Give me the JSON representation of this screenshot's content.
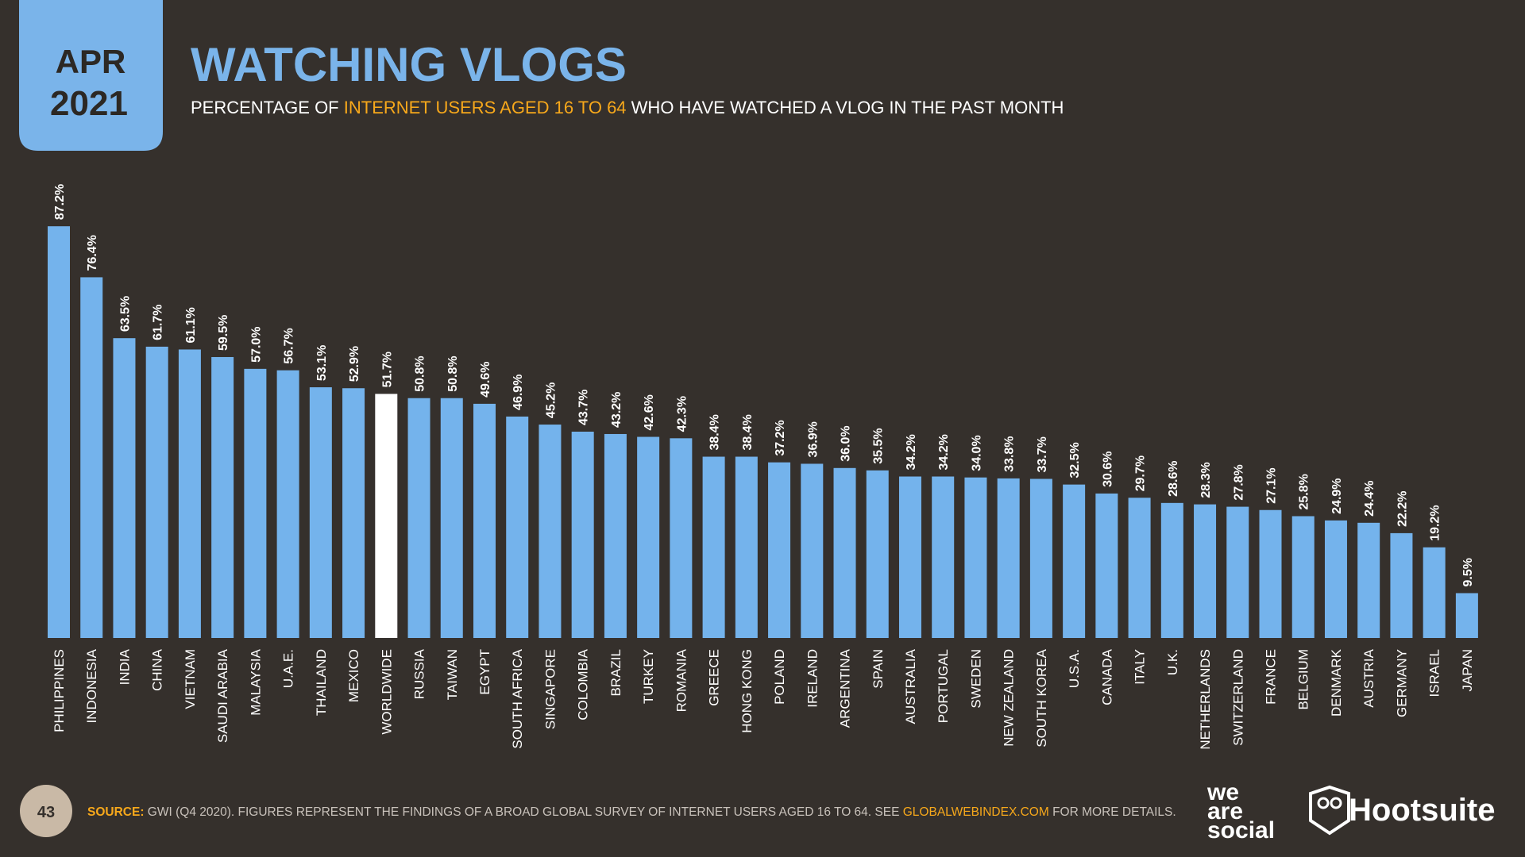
{
  "badge": {
    "month": "APR",
    "year": "2021"
  },
  "chart_data": {
    "type": "bar",
    "title": "WATCHING VLOGS",
    "subtitle": [
      "PERCENTAGE OF",
      "INTERNET USERS AGED 16 TO 64",
      "WHO HAVE WATCHED A VLOG IN THE PAST MONTH"
    ],
    "categories": [
      "PHILIPPINES",
      "INDONESIA",
      "INDIA",
      "CHINA",
      "VIETNAM",
      "SAUDI ARABIA",
      "MALAYSIA",
      "U.A.E.",
      "THAILAND",
      "MEXICO",
      "WORLDWIDE",
      "RUSSIA",
      "TAIWAN",
      "EGYPT",
      "SOUTH AFRICA",
      "SINGAPORE",
      "COLOMBIA",
      "BRAZIL",
      "TURKEY",
      "ROMANIA",
      "GREECE",
      "HONG KONG",
      "POLAND",
      "IRELAND",
      "ARGENTINA",
      "SPAIN",
      "AUSTRALIA",
      "PORTUGAL",
      "SWEDEN",
      "NEW ZEALAND",
      "SOUTH KOREA",
      "U.S.A.",
      "CANADA",
      "ITALY",
      "U.K.",
      "NETHERLANDS",
      "SWITZERLAND",
      "FRANCE",
      "BELGIUM",
      "DENMARK",
      "AUSTRIA",
      "GERMANY",
      "ISRAEL",
      "JAPAN"
    ],
    "values": [
      87.2,
      76.4,
      63.5,
      61.7,
      61.1,
      59.5,
      57.0,
      56.7,
      53.1,
      52.9,
      51.7,
      50.8,
      50.8,
      49.6,
      46.9,
      45.2,
      43.7,
      43.2,
      42.6,
      42.3,
      38.4,
      38.4,
      37.2,
      36.9,
      36.0,
      35.5,
      34.2,
      34.2,
      34.0,
      33.8,
      33.7,
      32.5,
      30.6,
      29.7,
      28.6,
      28.3,
      27.8,
      27.1,
      25.8,
      24.9,
      24.4,
      22.2,
      19.2,
      9.5
    ],
    "value_labels": [
      "87.2%",
      "76.4%",
      "63.5%",
      "61.7%",
      "61.1%",
      "59.5%",
      "57.0%",
      "56.7%",
      "53.1%",
      "52.9%",
      "51.7%",
      "50.8%",
      "50.8%",
      "49.6%",
      "46.9%",
      "45.2%",
      "43.7%",
      "43.2%",
      "42.6%",
      "42.3%",
      "38.4%",
      "38.4%",
      "37.2%",
      "36.9%",
      "36.0%",
      "35.5%",
      "34.2%",
      "34.2%",
      "34.0%",
      "33.8%",
      "33.7%",
      "32.5%",
      "30.6%",
      "29.7%",
      "28.6%",
      "28.3%",
      "27.8%",
      "27.1%",
      "25.8%",
      "24.9%",
      "24.4%",
      "22.2%",
      "19.2%",
      "9.5%"
    ],
    "colors": [
      "#74b3ec",
      "#74b3ec",
      "#74b3ec",
      "#74b3ec",
      "#74b3ec",
      "#74b3ec",
      "#74b3ec",
      "#74b3ec",
      "#74b3ec",
      "#74b3ec",
      "#ffffff",
      "#74b3ec",
      "#74b3ec",
      "#74b3ec",
      "#74b3ec",
      "#74b3ec",
      "#74b3ec",
      "#74b3ec",
      "#74b3ec",
      "#74b3ec",
      "#74b3ec",
      "#74b3ec",
      "#74b3ec",
      "#74b3ec",
      "#74b3ec",
      "#74b3ec",
      "#74b3ec",
      "#74b3ec",
      "#74b3ec",
      "#74b3ec",
      "#74b3ec",
      "#74b3ec",
      "#74b3ec",
      "#74b3ec",
      "#74b3ec",
      "#74b3ec",
      "#74b3ec",
      "#74b3ec",
      "#74b3ec",
      "#74b3ec",
      "#74b3ec",
      "#74b3ec",
      "#74b3ec",
      "#74b3ec"
    ],
    "ylim": [
      0,
      100
    ]
  },
  "footer": {
    "page": "43",
    "source": [
      "SOURCE:",
      "GWI (Q4 2020). FIGURES REPRESENT THE FINDINGS OF A BROAD GLOBAL SURVEY OF INTERNET USERS AGED 16 TO 64. SEE",
      "GLOBALWEBINDEX.COM",
      "FOR MORE DETAILS."
    ],
    "logo_we_are_social": [
      "we",
      "are",
      "social"
    ],
    "logo_hootsuite": "Hootsuite"
  }
}
